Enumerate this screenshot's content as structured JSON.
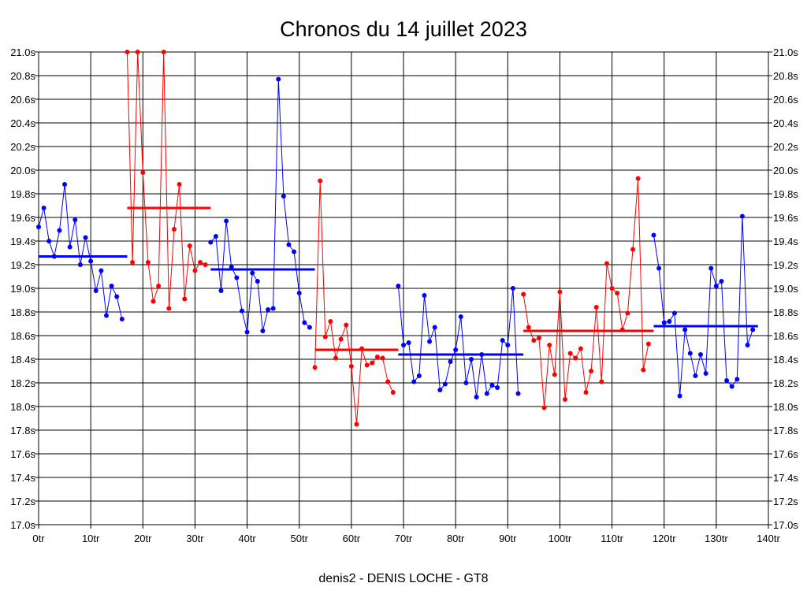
{
  "colors": {
    "series_a": "#0000ff",
    "series_b": "#ff0000",
    "grid": "#000000",
    "background": "#ffffff"
  },
  "chart_data": {
    "type": "line",
    "title": "Chronos du 14 juillet 2023",
    "footer": "denis2 - DENIS LOCHE - GT8",
    "xlabel": "",
    "ylabel": "",
    "xlim": [
      0,
      140
    ],
    "ylim": [
      17.0,
      21.0
    ],
    "grid": true,
    "x_ticks": [
      "0tr",
      "10tr",
      "20tr",
      "30tr",
      "40tr",
      "50tr",
      "60tr",
      "70tr",
      "80tr",
      "90tr",
      "100tr",
      "110tr",
      "120tr",
      "130tr",
      "140tr"
    ],
    "y_ticks_left": [
      "21.0s",
      "20.8s",
      "20.6s",
      "20.4s",
      "20.2s",
      "20.0s",
      "19.8s",
      "19.6s",
      "19.4s",
      "19.2s",
      "19.0s",
      "18.8s",
      "18.6s",
      "18.4s",
      "18.2s",
      "18.0s",
      "17.8s",
      "17.6s",
      "17.4s",
      "17.2s",
      "17.0s"
    ],
    "y_ticks_right": [
      "21.0s",
      "20.8s",
      "20.6s",
      "20.4s",
      "20.2s",
      "20.0s",
      "19.8s",
      "19.6s",
      "19.4s",
      "19.2s",
      "19.0s",
      "18.8s",
      "18.6s",
      "18.4s",
      "18.2s",
      "18.0s",
      "17.8s",
      "17.6s",
      "17.4s",
      "17.2s",
      "17.0s"
    ],
    "series": [
      {
        "color": "#0000ff",
        "avg": 19.27,
        "x": [
          0,
          1,
          2,
          3,
          4,
          5,
          6,
          7,
          8,
          9,
          10,
          11,
          12,
          13,
          14,
          15,
          16
        ],
        "y": [
          19.52,
          19.68,
          19.4,
          19.27,
          19.49,
          19.88,
          19.35,
          19.58,
          19.2,
          19.43,
          19.23,
          18.98,
          19.15,
          18.77,
          19.02,
          18.93,
          18.74
        ]
      },
      {
        "color": "#ff0000",
        "avg": 19.68,
        "x": [
          17,
          18,
          19,
          20,
          21,
          22,
          23,
          24,
          25,
          26,
          27,
          28,
          29,
          30,
          31,
          32
        ],
        "y": [
          21.0,
          19.22,
          21.0,
          19.98,
          19.22,
          18.89,
          19.02,
          21.0,
          18.83,
          19.5,
          19.88,
          18.91,
          19.36,
          19.15,
          19.22,
          19.2
        ]
      },
      {
        "color": "#0000ff",
        "avg": 19.16,
        "x": [
          33,
          34,
          35,
          36,
          37,
          38,
          39,
          40,
          41,
          42,
          43,
          44,
          45,
          46,
          47,
          48,
          49,
          50,
          51,
          52
        ],
        "y": [
          19.39,
          19.44,
          18.98,
          19.57,
          19.18,
          19.09,
          18.81,
          18.63,
          19.13,
          19.06,
          18.64,
          18.82,
          18.83,
          20.77,
          19.78,
          19.37,
          19.31,
          18.96,
          18.71,
          18.67
        ]
      },
      {
        "color": "#ff0000",
        "avg": 18.48,
        "x": [
          53,
          54,
          55,
          56,
          57,
          58,
          59,
          60,
          61,
          62,
          63,
          64,
          65,
          66,
          67,
          68
        ],
        "y": [
          18.33,
          19.91,
          18.59,
          18.72,
          18.41,
          18.57,
          18.69,
          18.34,
          17.85,
          18.49,
          18.35,
          18.37,
          18.42,
          18.41,
          18.21,
          18.12
        ]
      },
      {
        "color": "#0000ff",
        "avg": 18.44,
        "x": [
          69,
          70,
          71,
          72,
          73,
          74,
          75,
          76,
          77,
          78,
          79,
          80,
          81,
          82,
          83,
          84,
          85,
          86,
          87,
          88,
          89,
          90,
          91,
          92
        ],
        "y": [
          19.02,
          18.52,
          18.54,
          18.21,
          18.26,
          18.94,
          18.55,
          18.67,
          18.14,
          18.19,
          18.38,
          18.48,
          18.76,
          18.2,
          18.4,
          18.08,
          18.44,
          18.11,
          18.18,
          18.16,
          18.56,
          18.52,
          19.0,
          18.11
        ]
      },
      {
        "color": "#ff0000",
        "avg": 18.64,
        "x": [
          93,
          94,
          95,
          96,
          97,
          98,
          99,
          100,
          101,
          102,
          103,
          104,
          105,
          106,
          107,
          108,
          109,
          110,
          111,
          112,
          113,
          114,
          115,
          116,
          117
        ],
        "y": [
          18.95,
          18.67,
          18.56,
          18.58,
          17.99,
          18.52,
          18.27,
          18.97,
          18.06,
          18.45,
          18.41,
          18.49,
          18.12,
          18.3,
          18.84,
          18.21,
          19.21,
          19.0,
          18.96,
          18.65,
          18.79,
          19.33,
          19.93,
          18.31,
          18.53
        ]
      },
      {
        "color": "#0000ff",
        "avg": 18.68,
        "x": [
          118,
          119,
          120,
          121,
          122,
          123,
          124,
          125,
          126,
          127,
          128,
          129,
          130,
          131,
          132,
          133,
          134,
          135,
          136,
          137
        ],
        "y": [
          19.45,
          19.17,
          18.71,
          18.72,
          18.79,
          18.09,
          18.65,
          18.45,
          18.26,
          18.44,
          18.28,
          19.17,
          19.02,
          19.06,
          18.22,
          18.17,
          18.23,
          19.61,
          18.52,
          18.65
        ]
      }
    ]
  }
}
